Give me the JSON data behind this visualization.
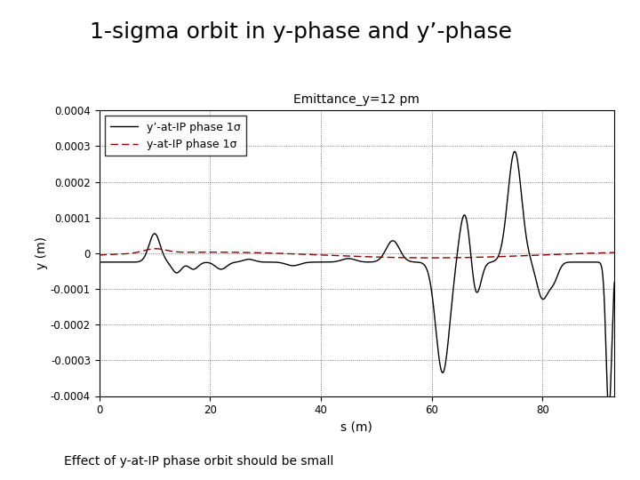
{
  "title": "1-sigma orbit in y-phase and y’-phase",
  "subtitle": "Emittance_y=12 pm",
  "xlabel": "s (m)",
  "ylabel": "y (m)",
  "footnote": "Effect of y-at-IP phase orbit should be small",
  "xlim": [
    0,
    93
  ],
  "ylim": [
    -0.0004,
    0.0004
  ],
  "yticks": [
    -0.0004,
    -0.0003,
    -0.0002,
    -0.0001,
    0,
    0.0001,
    0.0002,
    0.0003,
    0.0004
  ],
  "xticks": [
    0,
    20,
    40,
    60,
    80
  ],
  "legend1_label": "y’-at-IP phase 1σ",
  "legend2_label": "y-at-IP phase 1σ",
  "line1_color": "black",
  "line2_color": "#8B0000",
  "bg_color": "white",
  "title_fontsize": 18,
  "subtitle_fontsize": 10,
  "axis_label_fontsize": 10,
  "tick_fontsize": 8.5,
  "legend_fontsize": 9,
  "footnote_fontsize": 10
}
